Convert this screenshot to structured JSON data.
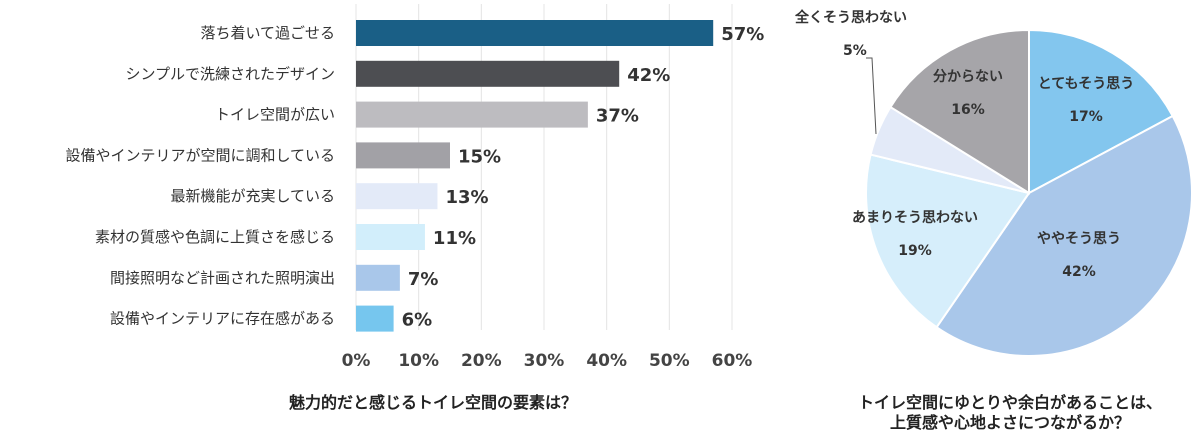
{
  "chart_data": [
    {
      "type": "bar",
      "orientation": "horizontal",
      "title": "魅力的だと感じるトイレ空間の要素は？",
      "categories": [
        "落ち着いて過ごせる",
        "シンプルで洗練されたデザイン",
        "トイレ空間が広い",
        "設備やインテリアが空間に調和している",
        "最新機能が充実している",
        "素材の質感や色調に上質さを感じる",
        "間接照明など計画された照明演出",
        "設備やインテリアに存在感がある"
      ],
      "values": [
        57,
        42,
        37,
        15,
        13,
        11,
        7,
        6
      ],
      "value_labels": [
        "57%",
        "42%",
        "37%",
        "15%",
        "13%",
        "11%",
        "7%",
        "6%"
      ],
      "colors": [
        "#1a5f86",
        "#4d4e52",
        "#bdbcc0",
        "#a2a1a6",
        "#e3eaf8",
        "#d2eefb",
        "#a9c7ea",
        "#76c6ee"
      ],
      "xlim": [
        0,
        60
      ],
      "x_ticks": [
        0,
        10,
        20,
        30,
        40,
        50,
        60
      ],
      "x_tick_labels": [
        "0%",
        "10%",
        "20%",
        "30%",
        "40%",
        "50%",
        "60%"
      ],
      "grid": true
    },
    {
      "type": "pie",
      "title": "トイレ空間にゆとりや余白があることは、\n上質感や心地よさにつながるか？",
      "slices": [
        {
          "label": "とてもそう思う",
          "value": 17,
          "value_label": "17%",
          "color": "#83c6ee"
        },
        {
          "label": "ややそう思う",
          "value": 42,
          "value_label": "42%",
          "color": "#a9c7ea"
        },
        {
          "label": "あまりそう思わない",
          "value": 19,
          "value_label": "19%",
          "color": "#d6eefb"
        },
        {
          "label": "全くそう思わない",
          "value": 5,
          "value_label": "5%",
          "color": "#e3eaf8"
        },
        {
          "label": "分からない",
          "value": 16,
          "value_label": "16%",
          "color": "#a6a5a9"
        }
      ]
    }
  ]
}
